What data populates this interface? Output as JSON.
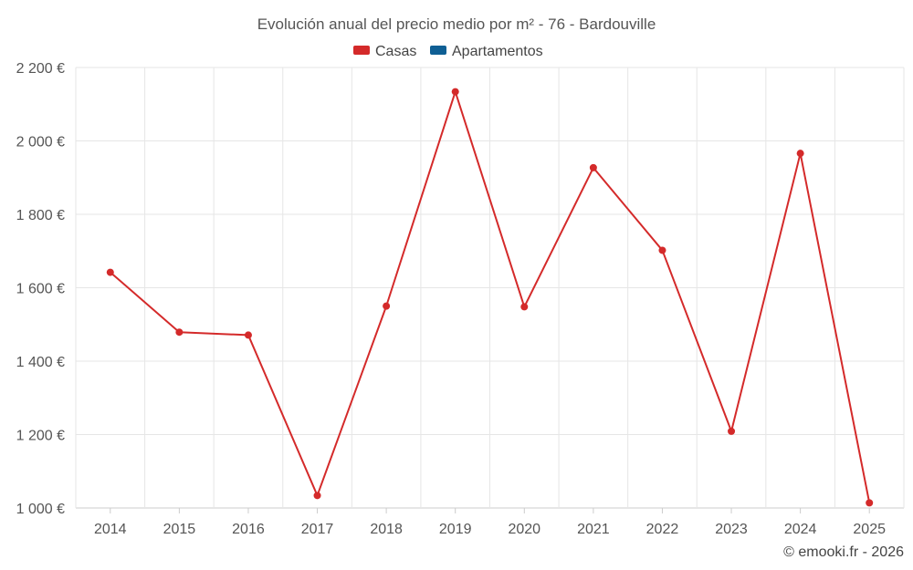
{
  "chart_data": {
    "type": "line",
    "title": "Evolución anual del precio medio por m² - 76 - Bardouville",
    "legend": [
      {
        "name": "Casas",
        "color": "#d42a2a"
      },
      {
        "name": "Apartamentos",
        "color": "#0f5f94"
      }
    ],
    "legend_position": "top-center",
    "categories": [
      "2014",
      "2015",
      "2016",
      "2017",
      "2018",
      "2019",
      "2020",
      "2021",
      "2022",
      "2023",
      "2024",
      "2025"
    ],
    "series": [
      {
        "name": "Casas",
        "color": "#d42a2a",
        "values": [
          1642,
          1479,
          1471,
          1034,
          1550,
          2134,
          1548,
          1927,
          1702,
          1209,
          1966,
          1014
        ]
      }
    ],
    "y_ticks": [
      "1 000 €",
      "1 200 €",
      "1 400 €",
      "1 600 €",
      "1 800 €",
      "2 000 €",
      "2 200 €"
    ],
    "ylim": [
      1000,
      2200
    ],
    "grid": true,
    "credit": "© emooki.fr - 2026"
  }
}
